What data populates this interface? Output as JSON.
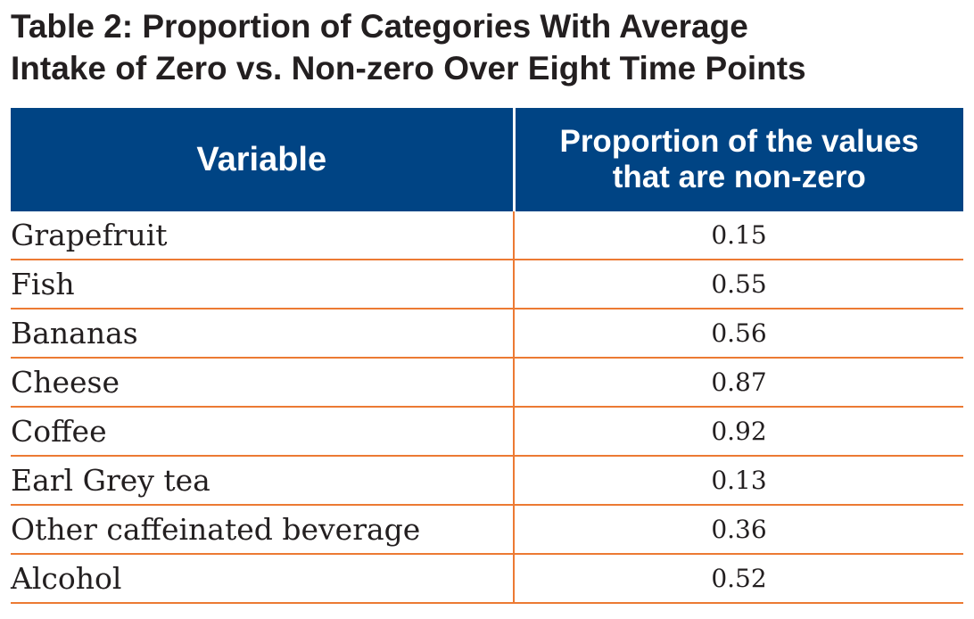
{
  "title": {
    "line1": "Table 2: Proportion of Categories With Average",
    "line2": "Intake of Zero vs. Non-zero Over Eight Time Points"
  },
  "table": {
    "header": {
      "variable": "Variable",
      "proportion_line1": "Proportion of the values",
      "proportion_line2": "that are non-zero"
    },
    "rows": [
      {
        "variable": "Grapefruit",
        "value": "0.15"
      },
      {
        "variable": "Fish",
        "value": "0.55"
      },
      {
        "variable": "Bananas",
        "value": "0.56"
      },
      {
        "variable": "Cheese",
        "value": "0.87"
      },
      {
        "variable": "Coffee",
        "value": "0.92"
      },
      {
        "variable": "Earl Grey tea",
        "value": "0.13"
      },
      {
        "variable": "Other caffeinated beverage",
        "value": "0.36"
      },
      {
        "variable": "Alcohol",
        "value": "0.52"
      }
    ]
  },
  "colors": {
    "header_background": "#004484",
    "row_divider": "#ec7a33",
    "text": "#231f20"
  }
}
